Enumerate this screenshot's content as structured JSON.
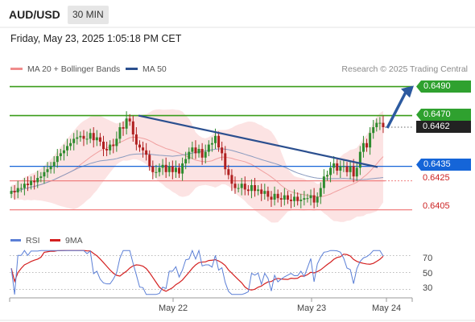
{
  "header": {
    "pair": "AUD/USD",
    "timeframe": "30 MIN",
    "timestamp": "Friday, May 23, 2025 1:05:18 PM CET"
  },
  "legend": {
    "bollinger_label": "MA 20 + Bollinger Bands",
    "ma50_label": "MA 50",
    "credit": "Research © 2025 Trading Central",
    "bollinger_color": "#f08c8c",
    "ma50_color": "#2b4f8f"
  },
  "rsi_legend": {
    "rsi_label": "RSI",
    "ma_label": "9MA",
    "rsi_color": "#5b7fd6",
    "ma_color": "#d42020"
  },
  "colors": {
    "resistance": "#3a9c1a",
    "pivot": "#1565d8",
    "support": "#f08080",
    "trendline": "#2b4f8f"
  },
  "chart_data": {
    "type": "candlestick",
    "price_range": [
      0.6397,
      0.6497
    ],
    "levels": [
      {
        "value": 0.649,
        "label": "0.6490",
        "kind": "resistance"
      },
      {
        "value": 0.647,
        "label": "0.6470",
        "kind": "resistance"
      },
      {
        "value": 0.6462,
        "label": "0.6462",
        "kind": "last-price"
      },
      {
        "value": 0.6435,
        "label": "0.6435",
        "kind": "pivot"
      },
      {
        "value": 0.6425,
        "label": "0.6425",
        "kind": "support"
      },
      {
        "value": 0.6405,
        "label": "0.6405",
        "kind": "support"
      }
    ],
    "x_labels": [
      "May 22",
      "May 23",
      "May 24"
    ],
    "rsi_ticks": [
      "70",
      "50",
      "30"
    ],
    "rsi_range": [
      20,
      80
    ],
    "candle_closes": [
      0.6418,
      0.6417,
      0.642,
      0.642,
      0.6423,
      0.6422,
      0.6425,
      0.6424,
      0.6427,
      0.6428,
      0.6431,
      0.6433,
      0.6435,
      0.6438,
      0.6442,
      0.6444,
      0.6446,
      0.6449,
      0.6451,
      0.6454,
      0.6455,
      0.6456,
      0.6454,
      0.6454,
      0.6458,
      0.6453,
      0.6455,
      0.6452,
      0.6447,
      0.6446,
      0.645,
      0.6449,
      0.6454,
      0.6462,
      0.6461,
      0.6468,
      0.6466,
      0.6457,
      0.645,
      0.6448,
      0.6446,
      0.6443,
      0.6435,
      0.6431,
      0.6431,
      0.6434,
      0.6436,
      0.6431,
      0.6435,
      0.6431,
      0.6434,
      0.643,
      0.6437,
      0.644,
      0.6445,
      0.6448,
      0.6444,
      0.6447,
      0.6441,
      0.6445,
      0.645,
      0.6451,
      0.6456,
      0.6448,
      0.6444,
      0.6433,
      0.6429,
      0.6423,
      0.642,
      0.642,
      0.6423,
      0.6419,
      0.6418,
      0.6422,
      0.6418,
      0.6419,
      0.6416,
      0.6418,
      0.6414,
      0.6412,
      0.6416,
      0.6413,
      0.6412,
      0.6415,
      0.6412,
      0.6411,
      0.6414,
      0.6411,
      0.6412,
      0.6413,
      0.6413,
      0.6415,
      0.641,
      0.6414,
      0.642,
      0.6428,
      0.6429,
      0.6434,
      0.6437,
      0.6432,
      0.6435,
      0.6435,
      0.6431,
      0.6435,
      0.6428,
      0.6434,
      0.6445,
      0.6451,
      0.6448,
      0.6458,
      0.6462,
      0.6465,
      0.6465,
      0.6462
    ],
    "trendline": [
      [
        0.647,
        0.6435
      ]
    ],
    "projection": "arrow toward 0.6490"
  }
}
